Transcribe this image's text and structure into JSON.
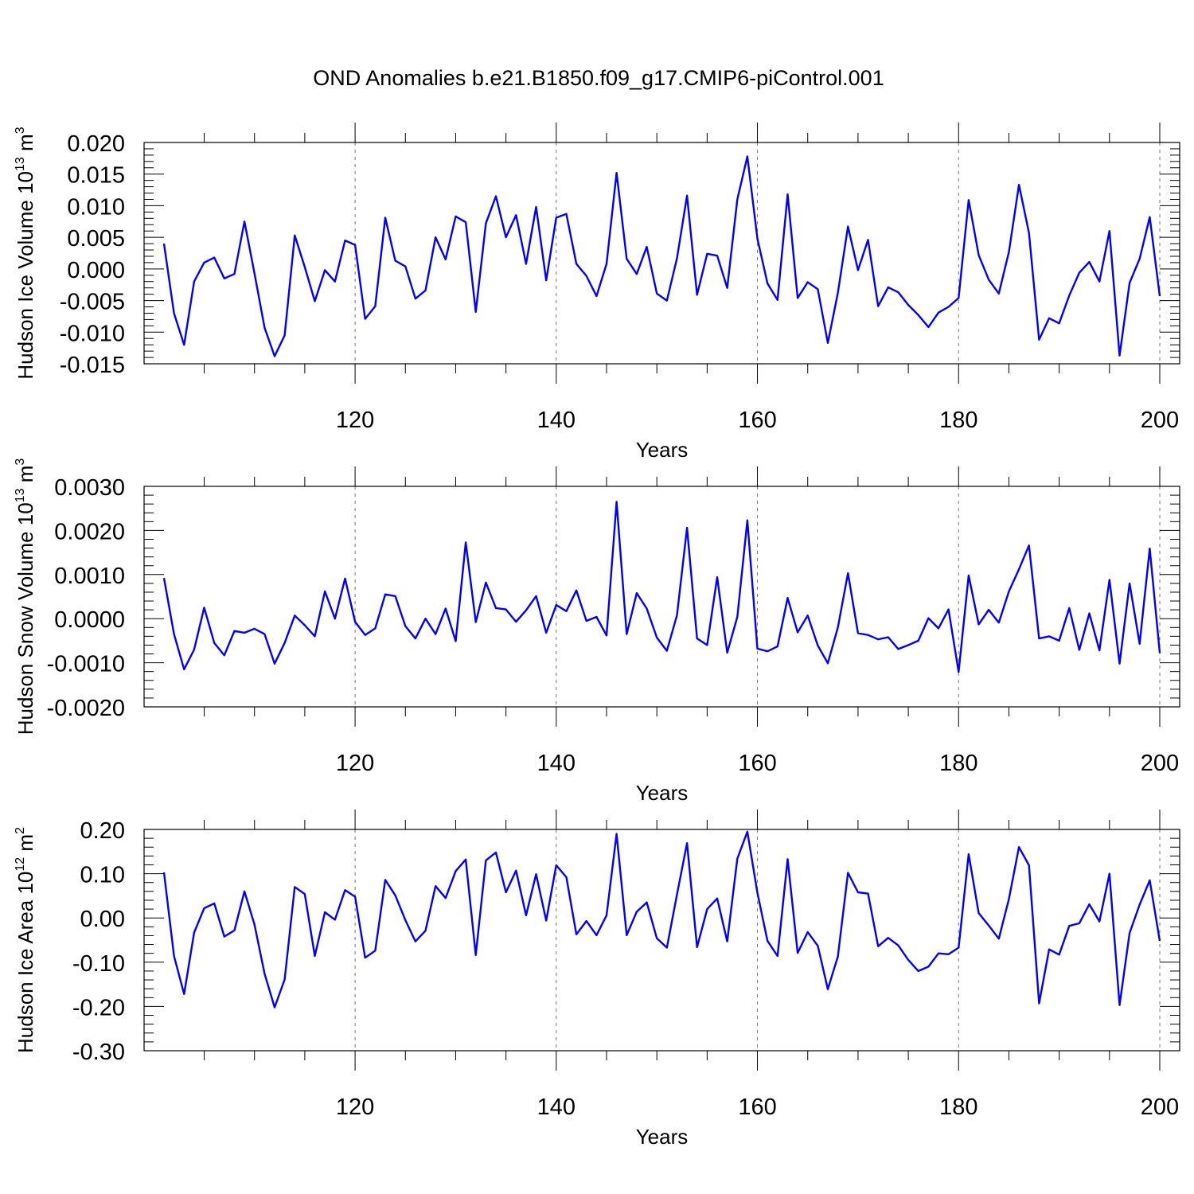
{
  "title": "OND Anomalies b.e21.B1850.f09_g17.CMIP6-piControl.001",
  "chart_data": [
    {
      "type": "line",
      "title": "OND Anomalies b.e21.B1850.f09_g17.CMIP6-piControl.001",
      "xlabel": "Years",
      "ylabel_main": "Hudson Ice Volume 10",
      "ylabel_exp": "13",
      "ylabel_unit_base": "m",
      "ylabel_unit_exp": "3",
      "xlim": [
        101,
        200
      ],
      "ylim": [
        -0.015,
        0.02
      ],
      "xticks": [
        120,
        140,
        160,
        180,
        200
      ],
      "xtick_labels": [
        "120",
        "140",
        "160",
        "180",
        "200"
      ],
      "yticks": [
        -0.015,
        -0.01,
        -0.005,
        0,
        0.005,
        0.01,
        0.015,
        0.02
      ],
      "ytick_labels": [
        "-0.015",
        "-0.010",
        "-0.005",
        "0.000",
        "0.005",
        "0.010",
        "0.015",
        "0.020"
      ],
      "grid": "dashed vertical at major x ticks",
      "line_color": "#0000ff",
      "x_start": 101,
      "values": [
        0.004,
        -0.007,
        -0.012,
        -0.002,
        0.001,
        0.0018,
        -0.0015,
        -0.0008,
        0.0075,
        -0.0007,
        -0.0093,
        -0.0138,
        -0.0105,
        0.0053,
        0.0003,
        -0.0051,
        -0.0002,
        -0.002,
        0.0045,
        0.0038,
        -0.0079,
        -0.0059,
        0.0081,
        0.0013,
        0.0004,
        -0.0047,
        -0.0034,
        0.005,
        0.0015,
        0.0083,
        0.0074,
        -0.0068,
        0.0072,
        0.0115,
        0.005,
        0.0085,
        0.0008,
        0.0098,
        -0.0018,
        0.0081,
        0.0087,
        0.0008,
        -0.0011,
        -0.0043,
        0.0008,
        0.0152,
        0.0016,
        -0.0008,
        0.0035,
        -0.0039,
        -0.005,
        0.0017,
        0.0116,
        -0.0041,
        0.0024,
        0.0021,
        -0.003,
        0.011,
        0.0178,
        0.0048,
        -0.0023,
        -0.0049,
        0.0118,
        -0.0046,
        -0.0021,
        -0.0032,
        -0.0117,
        -0.0038,
        0.0067,
        -0.0002,
        0.0046,
        -0.0059,
        -0.0029,
        -0.0037,
        -0.0057,
        -0.0073,
        -0.0092,
        -0.0069,
        -0.006,
        -0.0046,
        0.0109,
        0.0022,
        -0.0017,
        -0.0039,
        0.0027,
        0.0133,
        0.0057,
        -0.0112,
        -0.0078,
        -0.0086,
        -0.0042,
        -0.0006,
        0.0011,
        -0.002,
        0.006,
        -0.0137,
        -0.0022,
        0.0016,
        0.0082,
        -0.0043
      ]
    },
    {
      "type": "line",
      "xlabel": "Years",
      "ylabel_main": "Hudson Snow Volume 10",
      "ylabel_exp": "13",
      "ylabel_unit_base": "m",
      "ylabel_unit_exp": "3",
      "xlim": [
        101,
        200
      ],
      "ylim": [
        -0.002,
        0.003
      ],
      "xticks": [
        120,
        140,
        160,
        180,
        200
      ],
      "xtick_labels": [
        "120",
        "140",
        "160",
        "180",
        "200"
      ],
      "yticks": [
        -0.002,
        -0.001,
        0,
        0.001,
        0.002,
        0.003
      ],
      "ytick_labels": [
        "-0.0020",
        "-0.0010",
        "0.0000",
        "0.0010",
        "0.0020",
        "0.0030"
      ],
      "grid": "dashed vertical at major x ticks",
      "line_color": "#0000ff",
      "x_start": 101,
      "values": [
        0.00092,
        -0.00035,
        -0.00115,
        -0.0007,
        0.00025,
        -0.00055,
        -0.00083,
        -0.00028,
        -0.00032,
        -0.00023,
        -0.00035,
        -0.00102,
        -0.00055,
        7e-05,
        -0.00015,
        -0.0004,
        0.00062,
        0.0,
        0.00091,
        -7e-05,
        -0.00037,
        -0.00022,
        0.00055,
        0.00051,
        -0.00017,
        -0.00045,
        0.0,
        -0.00035,
        0.00023,
        -0.00051,
        0.00173,
        -8e-05,
        0.00082,
        0.00024,
        0.00021,
        -7e-05,
        0.00019,
        0.00051,
        -0.00032,
        0.00031,
        0.00017,
        0.00064,
        -5e-05,
        4e-05,
        -0.00038,
        0.00265,
        -0.00035,
        0.00058,
        0.00023,
        -0.00043,
        -0.00073,
        8e-05,
        0.00206,
        -0.00045,
        -0.0006,
        0.00094,
        -0.00077,
        4e-05,
        0.00223,
        -0.00068,
        -0.00074,
        -0.00063,
        0.00047,
        -0.00031,
        7e-05,
        -0.00061,
        -0.00101,
        -0.0002,
        0.00103,
        -0.00033,
        -0.00037,
        -0.00047,
        -0.00042,
        -0.00069,
        -0.0006,
        -0.0005,
        1e-05,
        -0.00022,
        0.00021,
        -0.00121,
        0.00098,
        -0.00013,
        0.0002,
        -9e-05,
        0.00062,
        0.00112,
        0.00166,
        -0.00045,
        -0.0004,
        -0.0005,
        0.00024,
        -0.00071,
        0.00012,
        -0.00072,
        0.00088,
        -0.00102,
        0.0008,
        -0.00057,
        0.00159,
        -0.00078
      ]
    },
    {
      "type": "line",
      "xlabel": "Years",
      "ylabel_main": "Hudson Ice Area 10",
      "ylabel_exp": "12",
      "ylabel_unit_base": "m",
      "ylabel_unit_exp": "2",
      "xlim": [
        101,
        200
      ],
      "ylim": [
        -0.3,
        0.2
      ],
      "xticks": [
        120,
        140,
        160,
        180,
        200
      ],
      "xtick_labels": [
        "120",
        "140",
        "160",
        "180",
        "200"
      ],
      "yticks": [
        -0.3,
        -0.2,
        -0.1,
        0,
        0.1,
        0.2
      ],
      "ytick_labels": [
        "-0.30",
        "-0.20",
        "-0.10",
        "0.00",
        "0.10",
        "0.20"
      ],
      "grid": "dashed vertical at major x ticks",
      "line_color": "#0000ff",
      "x_start": 101,
      "values": [
        0.103,
        -0.086,
        -0.172,
        -0.033,
        0.022,
        0.033,
        -0.042,
        -0.028,
        0.06,
        -0.015,
        -0.126,
        -0.202,
        -0.139,
        0.07,
        0.054,
        -0.086,
        0.013,
        -0.004,
        0.063,
        0.048,
        -0.09,
        -0.074,
        0.086,
        0.051,
        -0.005,
        -0.053,
        -0.029,
        0.072,
        0.045,
        0.106,
        0.132,
        -0.084,
        0.13,
        0.148,
        0.058,
        0.107,
        0.006,
        0.099,
        -0.006,
        0.119,
        0.092,
        -0.037,
        -0.007,
        -0.039,
        0.006,
        0.19,
        -0.039,
        0.014,
        0.035,
        -0.046,
        -0.067,
        0.053,
        0.169,
        -0.066,
        0.02,
        0.044,
        -0.053,
        0.134,
        0.195,
        0.057,
        -0.052,
        -0.086,
        0.133,
        -0.079,
        -0.032,
        -0.063,
        -0.161,
        -0.087,
        0.102,
        0.058,
        0.055,
        -0.064,
        -0.045,
        -0.062,
        -0.095,
        -0.12,
        -0.11,
        -0.08,
        -0.082,
        -0.067,
        0.144,
        0.011,
        -0.017,
        -0.047,
        0.043,
        0.16,
        0.119,
        -0.193,
        -0.071,
        -0.083,
        -0.018,
        -0.012,
        0.031,
        -0.008,
        0.1,
        -0.197,
        -0.034,
        0.03,
        0.085,
        -0.052
      ]
    }
  ]
}
